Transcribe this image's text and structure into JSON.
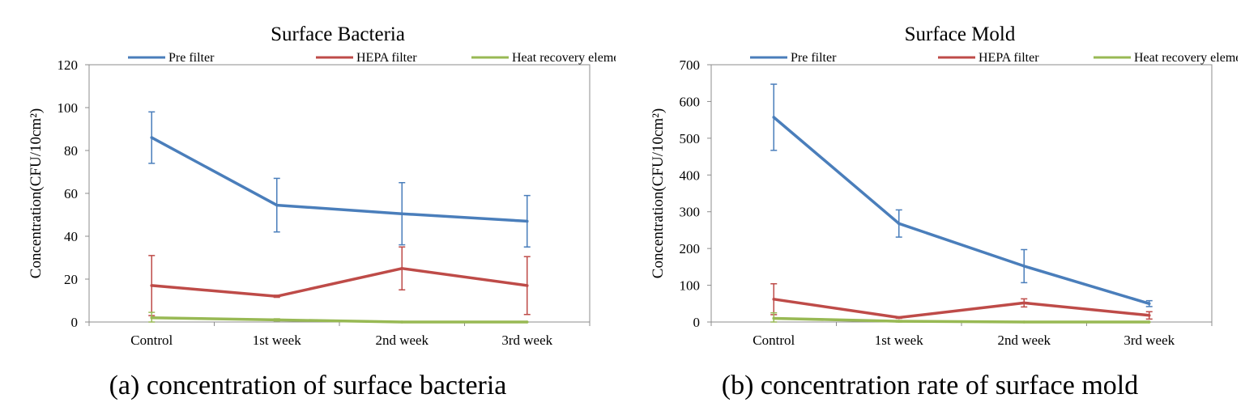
{
  "figures": [
    {
      "caption": "(a) concentration of surface bacteria",
      "chart_data": {
        "type": "line",
        "title": "Surface Bacteria",
        "xlabel": "",
        "ylabel": "Concentration(CFU/10cm²)",
        "categories": [
          "Control",
          "1st week",
          "2nd week",
          "3rd week"
        ],
        "ylim": [
          0,
          120
        ],
        "yticks": [
          0,
          20,
          40,
          60,
          80,
          100,
          120
        ],
        "grid": false,
        "legend": "top",
        "series": [
          {
            "name": "Pre filter",
            "color": "#4a7ebb",
            "values": [
              86,
              54.5,
              50.5,
              47
            ],
            "errors": [
              12,
              12.5,
              14.5,
              12
            ]
          },
          {
            "name": "HEPA filter",
            "color": "#be4b48",
            "values": [
              17,
              12,
              25,
              17
            ],
            "errors": [
              14,
              0.5,
              10,
              13.5
            ]
          },
          {
            "name": "Heat recovery element",
            "color": "#98b954",
            "values": [
              2,
              1,
              0,
              0
            ],
            "errors": [
              2.5,
              0.5,
              0,
              0
            ]
          }
        ]
      }
    },
    {
      "caption": "(b) concentration rate of surface mold",
      "chart_data": {
        "type": "line",
        "title": "Surface Mold",
        "xlabel": "",
        "ylabel": "Concentration(CFU/10cm²)",
        "categories": [
          "Control",
          "1st week",
          "2nd week",
          "3rd week"
        ],
        "ylim": [
          0,
          700
        ],
        "yticks": [
          0,
          100,
          200,
          300,
          400,
          500,
          600,
          700
        ],
        "grid": false,
        "legend": "top",
        "series": [
          {
            "name": "Pre filter",
            "color": "#4a7ebb",
            "values": [
              557,
              268,
              152,
              50
            ],
            "errors": [
              90,
              37,
              45,
              8
            ]
          },
          {
            "name": "HEPA filter",
            "color": "#be4b48",
            "values": [
              62,
              12,
              52,
              18
            ],
            "errors": [
              42,
              2,
              11,
              10
            ]
          },
          {
            "name": "Heat recovery element",
            "color": "#98b954",
            "values": [
              10,
              2,
              0,
              0
            ],
            "errors": [
              15,
              2,
              0,
              0
            ]
          }
        ]
      }
    }
  ]
}
